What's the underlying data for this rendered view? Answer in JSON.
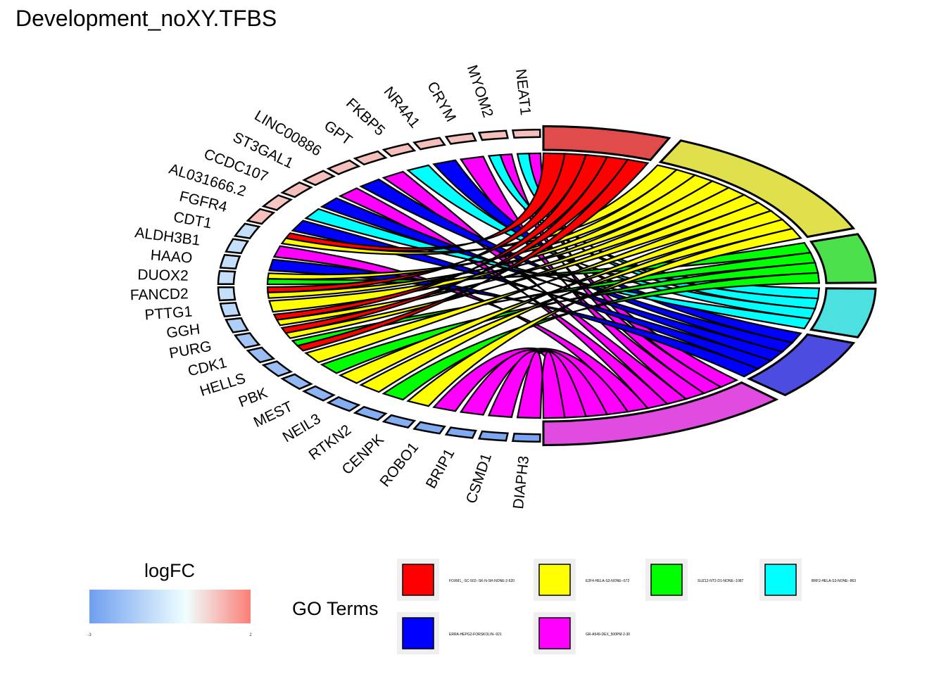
{
  "title": "Development_noXY.TFBS",
  "chart_data": {
    "type": "chord",
    "title": "Development_noXY.TFBS",
    "genes": [
      {
        "name": "NEAT1",
        "logFC": 1.0
      },
      {
        "name": "MYOM2",
        "logFC": 1.0
      },
      {
        "name": "CRYM",
        "logFC": 1.0
      },
      {
        "name": "NR4A1",
        "logFC": 1.0
      },
      {
        "name": "FKBP5",
        "logFC": 1.0
      },
      {
        "name": "GPT",
        "logFC": 1.0
      },
      {
        "name": "LINC00886",
        "logFC": 1.0
      },
      {
        "name": "ST3GAL1",
        "logFC": 1.0
      },
      {
        "name": "CCDC107",
        "logFC": 1.0
      },
      {
        "name": "AL031666.2",
        "logFC": 0.9
      },
      {
        "name": "FGFR4",
        "logFC": 1.0
      },
      {
        "name": "CDT1",
        "logFC": -1.0
      },
      {
        "name": "ALDH3B1",
        "logFC": -1.0
      },
      {
        "name": "HAAO",
        "logFC": -1.0
      },
      {
        "name": "DUOX2",
        "logFC": -1.0
      },
      {
        "name": "FANCD2",
        "logFC": -1.0
      },
      {
        "name": "PTTG1",
        "logFC": -1.2
      },
      {
        "name": "GGH",
        "logFC": -1.5
      },
      {
        "name": "PURG",
        "logFC": -1.8
      },
      {
        "name": "CDK1",
        "logFC": -2.0
      },
      {
        "name": "HELLS",
        "logFC": -2.0
      },
      {
        "name": "PBK",
        "logFC": -2.2
      },
      {
        "name": "MEST",
        "logFC": -2.3
      },
      {
        "name": "NEIL3",
        "logFC": -2.5
      },
      {
        "name": "RTKN2",
        "logFC": -2.5
      },
      {
        "name": "CENPK",
        "logFC": -2.5
      },
      {
        "name": "ROBO1",
        "logFC": -2.6
      },
      {
        "name": "BRIP1",
        "logFC": -2.6
      },
      {
        "name": "CSMD1",
        "logFC": -2.7
      },
      {
        "name": "DIAPH3",
        "logFC": -2.8
      }
    ],
    "terms": [
      {
        "name": "FOXM1_-SC-502--SK-N-SH-NONE-2-620",
        "color": "#ff0000",
        "arcColor": "#e04c4c"
      },
      {
        "name": "E2F4-HELA-S3-NONE--672",
        "color": "#ffff00",
        "arcColor": "#e0e04c"
      },
      {
        "name": "SUZ12-NT2-D1-NONE--1087",
        "color": "#00ff00",
        "arcColor": "#4ce04c"
      },
      {
        "name": "BRF2-HELA-S3-NONE--863",
        "color": "#00ffff",
        "arcColor": "#4ce0e0"
      },
      {
        "name": "ERRA-HEPG2-FORSKOLIN--921",
        "color": "#0000ff",
        "arcColor": "#4c4ce0"
      },
      {
        "name": "GR-A549-DEX_500PM-2-30",
        "color": "#ff00ff",
        "arcColor": "#e04ce0"
      }
    ],
    "links": [
      [
        "NEAT1",
        "GR-A549-DEX_500PM-2-30"
      ],
      [
        "NEAT1",
        "BRF2-HELA-S3-NONE--863"
      ],
      [
        "MYOM2",
        "GR-A549-DEX_500PM-2-30"
      ],
      [
        "MYOM2",
        "BRF2-HELA-S3-NONE--863"
      ],
      [
        "CRYM",
        "GR-A549-DEX_500PM-2-30"
      ],
      [
        "NR4A1",
        "ERRA-HEPG2-FORSKOLIN--921"
      ],
      [
        "FKBP5",
        "BRF2-HELA-S3-NONE--863"
      ],
      [
        "GPT",
        "GR-A549-DEX_500PM-2-30"
      ],
      [
        "LINC00886",
        "ERRA-HEPG2-FORSKOLIN--921"
      ],
      [
        "ST3GAL1",
        "GR-A549-DEX_500PM-2-30"
      ],
      [
        "CCDC107",
        "ERRA-HEPG2-FORSKOLIN--921"
      ],
      [
        "AL031666.2",
        "BRF2-HELA-S3-NONE--863"
      ],
      [
        "FGFR4",
        "ERRA-HEPG2-FORSKOLIN--921"
      ],
      [
        "CDT1",
        "FOXM1_-SC-502--SK-N-SH-NONE-2-620"
      ],
      [
        "CDT1",
        "E2F4-HELA-S3-NONE--672"
      ],
      [
        "ALDH3B1",
        "GR-A549-DEX_500PM-2-30"
      ],
      [
        "HAAO",
        "ERRA-HEPG2-FORSKOLIN--921"
      ],
      [
        "DUOX2",
        "E2F4-HELA-S3-NONE--672"
      ],
      [
        "DUOX2",
        "SUZ12-NT2-D1-NONE--1087"
      ],
      [
        "FANCD2",
        "FOXM1_-SC-502--SK-N-SH-NONE-2-620"
      ],
      [
        "FANCD2",
        "E2F4-HELA-S3-NONE--672"
      ],
      [
        "PTTG1",
        "E2F4-HELA-S3-NONE--672"
      ],
      [
        "GGH",
        "FOXM1_-SC-502--SK-N-SH-NONE-2-620"
      ],
      [
        "GGH",
        "E2F4-HELA-S3-NONE--672"
      ],
      [
        "PURG",
        "FOXM1_-SC-502--SK-N-SH-NONE-2-620"
      ],
      [
        "PURG",
        "E2F4-HELA-S3-NONE--672"
      ],
      [
        "CDK1",
        "SUZ12-NT2-D1-NONE--1087"
      ],
      [
        "CDK1",
        "FOXM1_-SC-502--SK-N-SH-NONE-2-620"
      ],
      [
        "HELLS",
        "E2F4-HELA-S3-NONE--672"
      ],
      [
        "PBK",
        "SUZ12-NT2-D1-NONE--1087"
      ],
      [
        "MEST",
        "E2F4-HELA-S3-NONE--672"
      ],
      [
        "NEIL3",
        "E2F4-HELA-S3-NONE--672"
      ],
      [
        "RTKN2",
        "SUZ12-NT2-D1-NONE--1087"
      ],
      [
        "CENPK",
        "E2F4-HELA-S3-NONE--672"
      ],
      [
        "ROBO1",
        "GR-A549-DEX_500PM-2-30"
      ],
      [
        "BRIP1",
        "GR-A549-DEX_500PM-2-30"
      ],
      [
        "CSMD1",
        "GR-A549-DEX_500PM-2-30"
      ],
      [
        "DIAPH3",
        "GR-A549-DEX_500PM-2-30"
      ]
    ],
    "logFC_legend": {
      "title": "logFC",
      "min_label": "-3",
      "max_label": "2",
      "low_color": "#6f9ef0",
      "mid_color": "#f0ffff",
      "high_color": "#fa7f76"
    },
    "terms_legend_title": "GO Terms"
  }
}
